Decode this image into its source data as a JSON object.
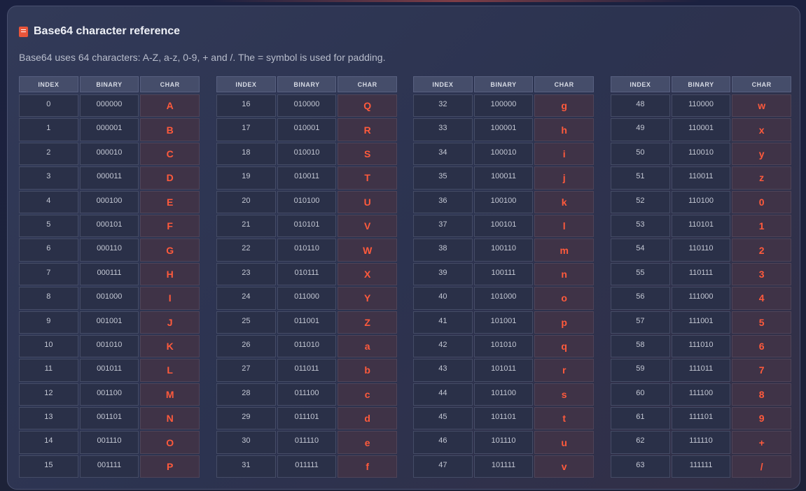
{
  "title": "Base64 character reference",
  "description": "Base64 uses 64 characters: A-Z, a-z, 0-9, + and /. The = symbol is used for padding.",
  "icon": "book-icon",
  "accent": "#ff5a3c",
  "headers": [
    "INDEX",
    "BINARY",
    "CHAR"
  ],
  "tables": [
    [
      [
        "0",
        "000000",
        "A"
      ],
      [
        "1",
        "000001",
        "B"
      ],
      [
        "2",
        "000010",
        "C"
      ],
      [
        "3",
        "000011",
        "D"
      ],
      [
        "4",
        "000100",
        "E"
      ],
      [
        "5",
        "000101",
        "F"
      ],
      [
        "6",
        "000110",
        "G"
      ],
      [
        "7",
        "000111",
        "H"
      ],
      [
        "8",
        "001000",
        "I"
      ],
      [
        "9",
        "001001",
        "J"
      ],
      [
        "10",
        "001010",
        "K"
      ],
      [
        "11",
        "001011",
        "L"
      ],
      [
        "12",
        "001100",
        "M"
      ],
      [
        "13",
        "001101",
        "N"
      ],
      [
        "14",
        "001110",
        "O"
      ],
      [
        "15",
        "001111",
        "P"
      ]
    ],
    [
      [
        "16",
        "010000",
        "Q"
      ],
      [
        "17",
        "010001",
        "R"
      ],
      [
        "18",
        "010010",
        "S"
      ],
      [
        "19",
        "010011",
        "T"
      ],
      [
        "20",
        "010100",
        "U"
      ],
      [
        "21",
        "010101",
        "V"
      ],
      [
        "22",
        "010110",
        "W"
      ],
      [
        "23",
        "010111",
        "X"
      ],
      [
        "24",
        "011000",
        "Y"
      ],
      [
        "25",
        "011001",
        "Z"
      ],
      [
        "26",
        "011010",
        "a"
      ],
      [
        "27",
        "011011",
        "b"
      ],
      [
        "28",
        "011100",
        "c"
      ],
      [
        "29",
        "011101",
        "d"
      ],
      [
        "30",
        "011110",
        "e"
      ],
      [
        "31",
        "011111",
        "f"
      ]
    ],
    [
      [
        "32",
        "100000",
        "g"
      ],
      [
        "33",
        "100001",
        "h"
      ],
      [
        "34",
        "100010",
        "i"
      ],
      [
        "35",
        "100011",
        "j"
      ],
      [
        "36",
        "100100",
        "k"
      ],
      [
        "37",
        "100101",
        "l"
      ],
      [
        "38",
        "100110",
        "m"
      ],
      [
        "39",
        "100111",
        "n"
      ],
      [
        "40",
        "101000",
        "o"
      ],
      [
        "41",
        "101001",
        "p"
      ],
      [
        "42",
        "101010",
        "q"
      ],
      [
        "43",
        "101011",
        "r"
      ],
      [
        "44",
        "101100",
        "s"
      ],
      [
        "45",
        "101101",
        "t"
      ],
      [
        "46",
        "101110",
        "u"
      ],
      [
        "47",
        "101111",
        "v"
      ]
    ],
    [
      [
        "48",
        "110000",
        "w"
      ],
      [
        "49",
        "110001",
        "x"
      ],
      [
        "50",
        "110010",
        "y"
      ],
      [
        "51",
        "110011",
        "z"
      ],
      [
        "52",
        "110100",
        "0"
      ],
      [
        "53",
        "110101",
        "1"
      ],
      [
        "54",
        "110110",
        "2"
      ],
      [
        "55",
        "110111",
        "3"
      ],
      [
        "56",
        "111000",
        "4"
      ],
      [
        "57",
        "111001",
        "5"
      ],
      [
        "58",
        "111010",
        "6"
      ],
      [
        "59",
        "111011",
        "7"
      ],
      [
        "60",
        "111100",
        "8"
      ],
      [
        "61",
        "111101",
        "9"
      ],
      [
        "62",
        "111110",
        "+"
      ],
      [
        "63",
        "111111",
        "/"
      ]
    ]
  ]
}
